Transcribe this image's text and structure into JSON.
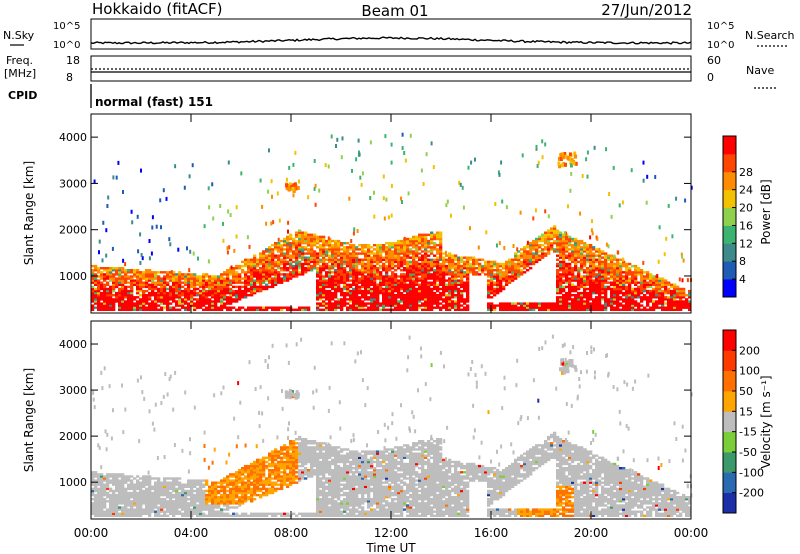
{
  "header": {
    "title": "Hokkaido (fitACF)",
    "beam": "Beam 01",
    "date": "27/Jun/2012"
  },
  "noise_panel": {
    "left_label": "N.Sky",
    "right_label": "N.Search",
    "left_ticks": [
      "10^5",
      "10^0"
    ],
    "right_ticks": [
      "10^5",
      "10^0"
    ]
  },
  "freq_panel": {
    "left_label": "Freq.",
    "left_unit": "[MHz]",
    "left_ticks": [
      "18",
      "8"
    ],
    "right_label": "Nave",
    "right_ticks": [
      "60",
      "0"
    ]
  },
  "cpid_panel": {
    "label": "CPID",
    "value": "normal (fast) 151"
  },
  "chart_data": [
    {
      "type": "heatmap",
      "name": "power",
      "ylabel": "Slant Range [km]",
      "yticks": [
        "1000",
        "2000",
        "3000",
        "4000"
      ],
      "ylim": [
        200,
        4500
      ],
      "xlim": [
        0,
        24
      ],
      "colorbar_label": "Power [dB]",
      "colorbar_ticks": [
        "4",
        "8",
        "12",
        "16",
        "20",
        "24",
        "28"
      ],
      "colorbar_colors": [
        "#0000ff",
        "#1e5bb5",
        "#3d8a8a",
        "#3cb371",
        "#8fd14f",
        "#f2c200",
        "#ff8c00",
        "#ff4500",
        "#ff0000"
      ]
    },
    {
      "type": "heatmap",
      "name": "velocity",
      "ylabel": "Slant Range [km]",
      "yticks": [
        "1000",
        "2000",
        "3000",
        "4000"
      ],
      "ylim": [
        200,
        4500
      ],
      "xlim": [
        0,
        24
      ],
      "xlabel": "Time UT",
      "xticks": [
        "00:00",
        "04:00",
        "08:00",
        "12:00",
        "16:00",
        "20:00",
        "00:00"
      ],
      "colorbar_label": "Velocity [m s⁻¹]",
      "colorbar_ticks": [
        "200",
        "100",
        "50",
        "15",
        "-15",
        "-50",
        "-100",
        "-200"
      ],
      "colorbar_colors": [
        "#1a2fa8",
        "#2a6ab0",
        "#3c9a6a",
        "#7ccd3a",
        "#bdbdbd",
        "#ffa500",
        "#ff7000",
        "#ff3a00",
        "#ff0000"
      ]
    }
  ]
}
